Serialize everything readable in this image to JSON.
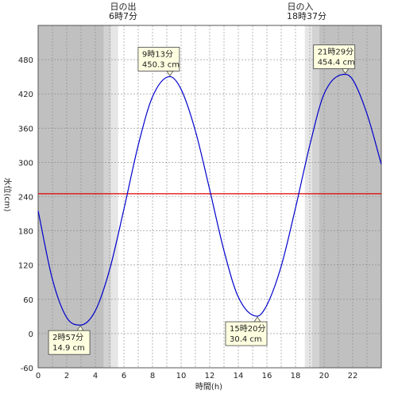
{
  "chart_data": {
    "type": "line",
    "xlabel": "時間(h)",
    "ylabel": "水位(cm)",
    "xlim": [
      0,
      24
    ],
    "ylim": [
      -60,
      540
    ],
    "x_ticks": [
      0,
      2,
      4,
      6,
      8,
      10,
      12,
      14,
      16,
      18,
      20,
      22
    ],
    "y_ticks": [
      -60,
      0,
      60,
      120,
      180,
      240,
      300,
      360,
      420,
      480
    ],
    "reference_level": 245,
    "colors": {
      "line": "#0000cc",
      "reference": "#dd0000",
      "night": "#c0c0c0",
      "twilight_dark": "#d2d2d2",
      "twilight_light": "#e6e6e6",
      "day": "#ffffff",
      "label_box": "#ffffe0"
    },
    "sun": {
      "sunrise": {
        "label": "日の出",
        "time": "6時7分",
        "hour": 6.117
      },
      "sunset": {
        "label": "日の入",
        "time": "18時37分",
        "hour": 18.617
      }
    },
    "twilight": {
      "morning": [
        4.6,
        5.1,
        5.6
      ],
      "evening": [
        18.65,
        19.15,
        19.65
      ]
    },
    "extremes": [
      {
        "kind": "low",
        "time": "2時57分",
        "level": "14.9 cm",
        "hour": 2.95,
        "value": 14.9,
        "anchor": "bottom-left"
      },
      {
        "kind": "high",
        "time": "9時13分",
        "level": "450.3 cm",
        "hour": 9.217,
        "value": 450.3,
        "anchor": "top-left"
      },
      {
        "kind": "low",
        "time": "15時20分",
        "level": "30.4 cm",
        "hour": 15.333,
        "value": 30.4,
        "anchor": "bottom-left"
      },
      {
        "kind": "high",
        "time": "21時29分",
        "level": "454.4 cm",
        "hour": 21.483,
        "value": 454.4,
        "anchor": "top-left"
      }
    ],
    "series": [
      {
        "x": [
          0,
          1,
          2,
          2.95,
          4,
          5,
          6,
          7,
          8,
          9.217,
          10,
          11,
          12,
          13,
          14,
          15.333,
          16,
          17,
          18,
          19,
          20,
          21.483,
          22,
          23,
          24
        ],
        "values": [
          215,
          95,
          28,
          14.9,
          40,
          112,
          218,
          330,
          415,
          450.3,
          428,
          355,
          252,
          145,
          64,
          30.4,
          50,
          118,
          220,
          330,
          420,
          454.4,
          445,
          385,
          297
        ]
      }
    ]
  }
}
